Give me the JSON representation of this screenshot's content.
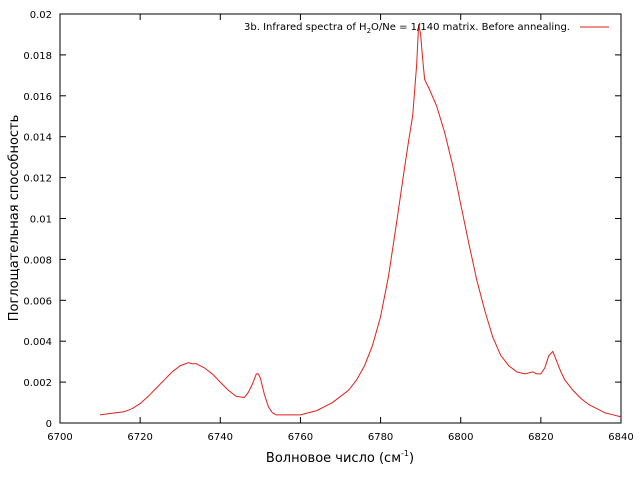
{
  "chart_data": {
    "type": "line",
    "xlabel": "Волновое число (см",
    "xlabel_sup": "-1",
    "xlabel_tail": ")",
    "ylabel": "Поглощательная способность",
    "xlim": [
      6700,
      6840
    ],
    "ylim": [
      0,
      0.02
    ],
    "xticks": [
      6700,
      6720,
      6740,
      6760,
      6780,
      6800,
      6820,
      6840
    ],
    "yticks": [
      "0",
      "0.002",
      "0.004",
      "0.006",
      "0.008",
      "0.01",
      "0.012",
      "0.014",
      "0.016",
      "0.018",
      "0.02"
    ],
    "grid": false,
    "legend_position": "top-right",
    "legend": {
      "prefix": "3b. Infrared spectra of H",
      "sub1": "2",
      "mid": "O/Ne = 1/140 matrix. Before annealing."
    },
    "series": [
      {
        "color": "#e0201b",
        "x": [
          6710,
          6712,
          6714,
          6716,
          6718,
          6720,
          6722,
          6724,
          6726,
          6728,
          6730,
          6732,
          6733,
          6734,
          6736,
          6738,
          6740,
          6742,
          6744,
          6746,
          6747,
          6748,
          6749,
          6749.5,
          6750,
          6751,
          6752,
          6753,
          6754,
          6756,
          6758,
          6760,
          6762,
          6764,
          6766,
          6768,
          6770,
          6772,
          6774,
          6776,
          6778,
          6780,
          6782,
          6784,
          6786,
          6787,
          6788,
          6789,
          6789.5,
          6790,
          6790.5,
          6791,
          6792,
          6794,
          6796,
          6798,
          6800,
          6802,
          6804,
          6806,
          6808,
          6810,
          6812,
          6814,
          6816,
          6818,
          6819,
          6820,
          6821,
          6822,
          6823,
          6824,
          6825,
          6826,
          6828,
          6830,
          6832,
          6834,
          6836,
          6838,
          6840
        ],
        "y": [
          0.0004,
          0.00045,
          0.0005,
          0.00055,
          0.0007,
          0.00095,
          0.0013,
          0.0017,
          0.0021,
          0.0025,
          0.0028,
          0.00295,
          0.0029,
          0.0029,
          0.0027,
          0.0024,
          0.002,
          0.0016,
          0.0013,
          0.00125,
          0.0015,
          0.0019,
          0.0024,
          0.0024,
          0.0022,
          0.0014,
          0.0008,
          0.0005,
          0.0004,
          0.0004,
          0.0004,
          0.0004,
          0.0005,
          0.0006,
          0.0008,
          0.001,
          0.0013,
          0.0016,
          0.0021,
          0.0028,
          0.0038,
          0.0052,
          0.0072,
          0.0098,
          0.0125,
          0.0138,
          0.015,
          0.0175,
          0.0195,
          0.019,
          0.0178,
          0.0168,
          0.0164,
          0.0155,
          0.0142,
          0.0126,
          0.0107,
          0.0088,
          0.007,
          0.0055,
          0.0042,
          0.0033,
          0.0028,
          0.0025,
          0.0024,
          0.0025,
          0.0024,
          0.0024,
          0.0027,
          0.0033,
          0.0035,
          0.003,
          0.0025,
          0.0021,
          0.0016,
          0.0012,
          0.0009,
          0.0007,
          0.0005,
          0.0004,
          0.0003
        ]
      }
    ]
  }
}
